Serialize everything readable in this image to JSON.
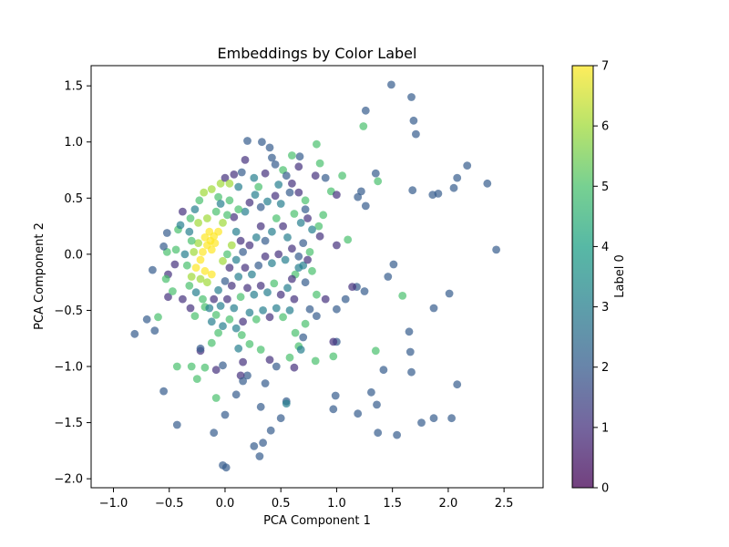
{
  "chart_data": {
    "type": "scatter",
    "title": "Embeddings by Color Label",
    "xlabel": "PCA Component 1",
    "ylabel": "PCA Component 2",
    "xlim": [
      -1.2,
      2.85
    ],
    "ylim": [
      -2.08,
      1.68
    ],
    "x_ticks": [
      -1.0,
      -0.5,
      0.0,
      0.5,
      1.0,
      1.5,
      2.0,
      2.5
    ],
    "x_tick_labels": [
      "−1.0",
      "−0.5",
      "0.0",
      "0.5",
      "1.0",
      "1.5",
      "2.0",
      "2.5"
    ],
    "y_ticks": [
      -2.0,
      -1.5,
      -1.0,
      -0.5,
      0.0,
      0.5,
      1.0,
      1.5
    ],
    "y_tick_labels": [
      "−2.0",
      "−1.5",
      "−1.0",
      "−0.5",
      "0.0",
      "0.5",
      "1.0",
      "1.5"
    ],
    "grid": false,
    "colormap": "viridis",
    "marker_alpha": 0.7,
    "colorbar": {
      "label": "Label 0",
      "range": [
        0,
        7
      ],
      "ticks": [
        0,
        1,
        2,
        3,
        4,
        5,
        6,
        7
      ],
      "tick_labels": [
        "0",
        "1",
        "2",
        "3",
        "4",
        "5",
        "6",
        "7"
      ]
    },
    "points": [
      [
        1.49,
        1.51,
        2
      ],
      [
        1.67,
        1.4,
        2
      ],
      [
        1.69,
        1.19,
        2
      ],
      [
        1.71,
        1.07,
        2
      ],
      [
        1.26,
        1.28,
        2
      ],
      [
        1.24,
        1.14,
        5
      ],
      [
        2.17,
        0.79,
        2
      ],
      [
        2.08,
        0.68,
        2
      ],
      [
        2.35,
        0.63,
        2
      ],
      [
        2.05,
        0.59,
        2
      ],
      [
        1.91,
        0.54,
        2
      ],
      [
        1.86,
        0.53,
        2
      ],
      [
        1.68,
        0.57,
        2
      ],
      [
        2.43,
        0.04,
        2
      ],
      [
        1.35,
        0.72,
        2
      ],
      [
        1.37,
        0.65,
        5
      ],
      [
        1.51,
        -0.09,
        2
      ],
      [
        1.46,
        -0.2,
        2
      ],
      [
        1.59,
        -0.37,
        5
      ],
      [
        1.87,
        -0.48,
        2
      ],
      [
        2.01,
        -0.35,
        2
      ],
      [
        1.65,
        -0.69,
        2
      ],
      [
        1.66,
        -0.87,
        2
      ],
      [
        1.67,
        -1.05,
        2
      ],
      [
        1.35,
        -0.86,
        5
      ],
      [
        1.42,
        -1.03,
        2
      ],
      [
        2.08,
        -1.16,
        2
      ],
      [
        1.87,
        -1.46,
        2
      ],
      [
        2.03,
        -1.46,
        2
      ],
      [
        1.76,
        -1.5,
        2
      ],
      [
        1.54,
        -1.61,
        2
      ],
      [
        1.37,
        -1.59,
        2
      ],
      [
        1.36,
        -1.34,
        2
      ],
      [
        1.31,
        -1.23,
        2
      ],
      [
        1.19,
        -1.42,
        2
      ],
      [
        0.97,
        -1.38,
        2
      ],
      [
        0.99,
        -1.26,
        2
      ],
      [
        1.26,
        0.43,
        2
      ],
      [
        1.22,
        0.56,
        2
      ],
      [
        1.19,
        0.51,
        2
      ],
      [
        1.05,
        0.7,
        5
      ],
      [
        1.1,
        0.13,
        5
      ],
      [
        1.0,
        0.08,
        1
      ],
      [
        1.18,
        -0.29,
        2
      ],
      [
        1.14,
        -0.29,
        1
      ],
      [
        1.25,
        -0.33,
        2
      ],
      [
        1.08,
        -0.4,
        2
      ],
      [
        1.0,
        -0.49,
        2
      ],
      [
        1.0,
        -0.78,
        2
      ],
      [
        0.97,
        -0.78,
        1
      ],
      [
        0.97,
        -0.91,
        5
      ],
      [
        0.81,
        -0.95,
        5
      ],
      [
        0.82,
        0.98,
        5
      ],
      [
        0.67,
        0.87,
        2
      ],
      [
        0.6,
        0.88,
        5
      ],
      [
        0.66,
        0.78,
        1
      ],
      [
        0.85,
        0.81,
        5
      ],
      [
        0.81,
        0.7,
        1
      ],
      [
        0.9,
        0.68,
        2
      ],
      [
        0.95,
        0.56,
        5
      ],
      [
        1.0,
        0.53,
        1
      ],
      [
        0.72,
        0.4,
        2
      ],
      [
        0.88,
        0.35,
        5
      ],
      [
        0.84,
        0.25,
        5
      ],
      [
        0.78,
        0.22,
        3
      ],
      [
        0.85,
        0.16,
        1
      ],
      [
        0.7,
        0.1,
        2
      ],
      [
        0.66,
        -0.02,
        2
      ],
      [
        0.76,
        0.02,
        5
      ],
      [
        0.63,
        -0.18,
        5
      ],
      [
        0.72,
        -0.25,
        2
      ],
      [
        0.82,
        -0.36,
        5
      ],
      [
        0.9,
        -0.4,
        1
      ],
      [
        0.76,
        -0.49,
        2
      ],
      [
        0.82,
        -0.55,
        2
      ],
      [
        0.72,
        -0.62,
        5
      ],
      [
        0.63,
        -0.7,
        5
      ],
      [
        0.66,
        -0.82,
        5
      ],
      [
        0.7,
        -0.74,
        2
      ],
      [
        0.68,
        -0.85,
        3
      ],
      [
        0.58,
        -0.92,
        5
      ],
      [
        0.62,
        -1.01,
        1
      ],
      [
        0.55,
        -1.31,
        2
      ],
      [
        0.55,
        -1.33,
        3
      ],
      [
        0.5,
        -1.46,
        2
      ],
      [
        0.41,
        -1.57,
        2
      ],
      [
        0.34,
        -1.68,
        2
      ],
      [
        0.26,
        -1.71,
        2
      ],
      [
        0.31,
        -1.8,
        2
      ],
      [
        -0.02,
        -1.88,
        2
      ],
      [
        0.01,
        -1.9,
        2
      ],
      [
        -0.1,
        -1.59,
        2
      ],
      [
        -0.43,
        -1.52,
        2
      ],
      [
        -0.55,
        -1.22,
        2
      ],
      [
        0.0,
        -1.43,
        2
      ],
      [
        0.1,
        -1.25,
        2
      ],
      [
        0.2,
        -1.08,
        2
      ],
      [
        0.32,
        -1.36,
        2
      ],
      [
        0.36,
        -1.15,
        2
      ],
      [
        0.46,
        -1.0,
        2
      ],
      [
        0.4,
        -0.94,
        1
      ],
      [
        0.32,
        -0.85,
        5
      ],
      [
        0.22,
        -0.8,
        5
      ],
      [
        0.15,
        -0.72,
        5
      ],
      [
        0.12,
        -0.84,
        3
      ],
      [
        0.16,
        -0.96,
        1
      ],
      [
        0.14,
        -1.08,
        1
      ],
      [
        0.16,
        -1.13,
        2
      ],
      [
        -0.08,
        -1.28,
        5
      ],
      [
        -0.18,
        -1.01,
        5
      ],
      [
        -0.08,
        -1.03,
        1
      ],
      [
        -0.02,
        -0.99,
        2
      ],
      [
        -0.25,
        -1.11,
        5
      ],
      [
        -0.3,
        -1.0,
        5
      ],
      [
        -0.43,
        -1.0,
        5
      ],
      [
        -0.22,
        -0.86,
        1
      ],
      [
        -0.22,
        -0.84,
        2
      ],
      [
        -0.12,
        -0.79,
        5
      ],
      [
        -0.06,
        -0.7,
        5
      ],
      [
        -0.12,
        -0.6,
        3
      ],
      [
        -0.18,
        -0.47,
        5
      ],
      [
        -0.27,
        -0.55,
        5
      ],
      [
        -0.31,
        -0.48,
        1
      ],
      [
        -0.38,
        -0.4,
        1
      ],
      [
        -0.51,
        -0.38,
        1
      ],
      [
        -0.47,
        -0.33,
        5
      ],
      [
        -0.6,
        -0.56,
        5
      ],
      [
        -0.63,
        -0.68,
        2
      ],
      [
        -0.81,
        -0.71,
        2
      ],
      [
        -0.7,
        -0.58,
        2
      ],
      [
        -0.65,
        -0.14,
        2
      ],
      [
        -0.51,
        -0.18,
        1
      ],
      [
        -0.53,
        -0.22,
        5
      ],
      [
        -0.45,
        -0.09,
        1
      ],
      [
        -0.44,
        0.04,
        5
      ],
      [
        -0.52,
        0.02,
        5
      ],
      [
        -0.55,
        0.07,
        2
      ],
      [
        -0.52,
        0.19,
        2
      ],
      [
        -0.42,
        0.22,
        5
      ],
      [
        -0.4,
        0.26,
        3
      ],
      [
        -0.38,
        0.38,
        1
      ],
      [
        -0.31,
        0.32,
        5
      ],
      [
        -0.27,
        0.4,
        3
      ],
      [
        -0.23,
        0.48,
        5
      ],
      [
        -0.19,
        0.55,
        6
      ],
      [
        -0.12,
        0.58,
        6
      ],
      [
        -0.06,
        0.51,
        5
      ],
      [
        -0.04,
        0.63,
        6
      ],
      [
        0.0,
        0.68,
        1
      ],
      [
        0.04,
        0.63,
        6
      ],
      [
        0.08,
        0.71,
        1
      ],
      [
        0.12,
        0.6,
        3
      ],
      [
        0.15,
        0.73,
        2
      ],
      [
        0.18,
        0.84,
        1
      ],
      [
        0.2,
        1.01,
        2
      ],
      [
        0.33,
        1.0,
        2
      ],
      [
        0.4,
        0.95,
        2
      ],
      [
        0.42,
        0.86,
        2
      ],
      [
        0.45,
        0.8,
        2
      ],
      [
        0.52,
        0.75,
        5
      ],
      [
        0.55,
        0.7,
        2
      ],
      [
        0.6,
        0.63,
        1
      ],
      [
        0.58,
        0.55,
        2
      ],
      [
        0.5,
        0.45,
        3
      ],
      [
        0.45,
        0.52,
        1
      ],
      [
        0.38,
        0.47,
        3
      ],
      [
        0.32,
        0.42,
        2
      ],
      [
        0.27,
        0.53,
        3
      ],
      [
        0.22,
        0.46,
        1
      ],
      [
        0.18,
        0.38,
        3
      ],
      [
        0.12,
        0.4,
        5
      ],
      [
        0.08,
        0.33,
        1
      ],
      [
        0.02,
        0.35,
        5
      ],
      [
        -0.02,
        0.28,
        6
      ],
      [
        -0.06,
        0.2,
        7
      ],
      [
        -0.1,
        0.16,
        7
      ],
      [
        -0.13,
        0.12,
        7
      ],
      [
        -0.16,
        0.08,
        7
      ],
      [
        -0.18,
        0.15,
        7
      ],
      [
        -0.14,
        0.2,
        7
      ],
      [
        -0.09,
        0.1,
        7
      ],
      [
        -0.12,
        0.04,
        7
      ],
      [
        -0.2,
        0.02,
        7
      ],
      [
        -0.24,
        0.1,
        6
      ],
      [
        -0.28,
        0.02,
        6
      ],
      [
        -0.22,
        -0.05,
        7
      ],
      [
        -0.26,
        -0.12,
        7
      ],
      [
        -0.18,
        -0.15,
        7
      ],
      [
        -0.12,
        -0.18,
        7
      ],
      [
        -0.16,
        -0.25,
        6
      ],
      [
        -0.22,
        -0.22,
        6
      ],
      [
        -0.3,
        -0.2,
        6
      ],
      [
        -0.34,
        -0.1,
        5
      ],
      [
        -0.36,
        0.0,
        3
      ],
      [
        -0.3,
        0.12,
        5
      ],
      [
        -0.32,
        0.2,
        3
      ],
      [
        -0.24,
        0.28,
        6
      ],
      [
        -0.16,
        0.32,
        6
      ],
      [
        -0.08,
        0.38,
        5
      ],
      [
        -0.04,
        0.45,
        3
      ],
      [
        0.04,
        0.48,
        5
      ],
      [
        0.1,
        0.2,
        3
      ],
      [
        0.14,
        0.12,
        1
      ],
      [
        0.06,
        0.08,
        6
      ],
      [
        0.02,
        0.0,
        5
      ],
      [
        -0.02,
        -0.06,
        6
      ],
      [
        0.04,
        -0.12,
        1
      ],
      [
        0.1,
        -0.05,
        3
      ],
      [
        0.16,
        0.02,
        2
      ],
      [
        0.22,
        0.08,
        1
      ],
      [
        0.28,
        0.15,
        3
      ],
      [
        0.32,
        0.25,
        1
      ],
      [
        0.36,
        0.12,
        2
      ],
      [
        0.42,
        0.2,
        3
      ],
      [
        0.46,
        0.32,
        5
      ],
      [
        0.52,
        0.25,
        1
      ],
      [
        0.56,
        0.15,
        3
      ],
      [
        0.6,
        0.05,
        1
      ],
      [
        0.54,
        -0.05,
        3
      ],
      [
        0.48,
        0.0,
        1
      ],
      [
        0.42,
        -0.08,
        3
      ],
      [
        0.36,
        -0.02,
        1
      ],
      [
        0.3,
        -0.1,
        2
      ],
      [
        0.24,
        -0.18,
        3
      ],
      [
        0.18,
        -0.12,
        1
      ],
      [
        0.12,
        -0.2,
        3
      ],
      [
        0.06,
        -0.28,
        1
      ],
      [
        0.0,
        -0.24,
        2
      ],
      [
        -0.06,
        -0.32,
        3
      ],
      [
        -0.1,
        -0.4,
        1
      ],
      [
        -0.04,
        -0.46,
        3
      ],
      [
        0.02,
        -0.4,
        1
      ],
      [
        0.08,
        -0.48,
        3
      ],
      [
        0.14,
        -0.38,
        5
      ],
      [
        0.2,
        -0.3,
        1
      ],
      [
        0.26,
        -0.36,
        3
      ],
      [
        0.32,
        -0.28,
        1
      ],
      [
        0.38,
        -0.34,
        3
      ],
      [
        0.44,
        -0.26,
        5
      ],
      [
        0.5,
        -0.36,
        1
      ],
      [
        0.56,
        -0.3,
        3
      ],
      [
        0.62,
        -0.4,
        1
      ],
      [
        0.58,
        -0.5,
        3
      ],
      [
        0.52,
        -0.56,
        5
      ],
      [
        0.46,
        -0.48,
        3
      ],
      [
        0.4,
        -0.56,
        1
      ],
      [
        0.34,
        -0.5,
        3
      ],
      [
        0.28,
        -0.58,
        5
      ],
      [
        0.22,
        -0.52,
        3
      ],
      [
        0.16,
        -0.6,
        1
      ],
      [
        0.1,
        -0.66,
        3
      ],
      [
        0.04,
        -0.58,
        5
      ],
      [
        -0.02,
        -0.64,
        3
      ],
      [
        -0.08,
        -0.54,
        5
      ],
      [
        -0.14,
        -0.48,
        3
      ],
      [
        -0.2,
        -0.4,
        5
      ],
      [
        -0.26,
        -0.34,
        3
      ],
      [
        -0.32,
        -0.28,
        5
      ],
      [
        0.3,
        0.6,
        5
      ],
      [
        0.26,
        0.68,
        3
      ],
      [
        0.36,
        0.72,
        1
      ],
      [
        0.48,
        0.62,
        3
      ],
      [
        0.66,
        0.55,
        1
      ],
      [
        0.72,
        0.48,
        5
      ],
      [
        0.74,
        0.32,
        1
      ],
      [
        0.68,
        0.28,
        3
      ],
      [
        0.62,
        0.36,
        5
      ],
      [
        0.7,
        -0.1,
        3
      ],
      [
        0.78,
        -0.15,
        5
      ],
      [
        0.74,
        -0.05,
        1
      ],
      [
        0.66,
        -0.12,
        3
      ],
      [
        0.6,
        -0.22,
        1
      ]
    ]
  }
}
